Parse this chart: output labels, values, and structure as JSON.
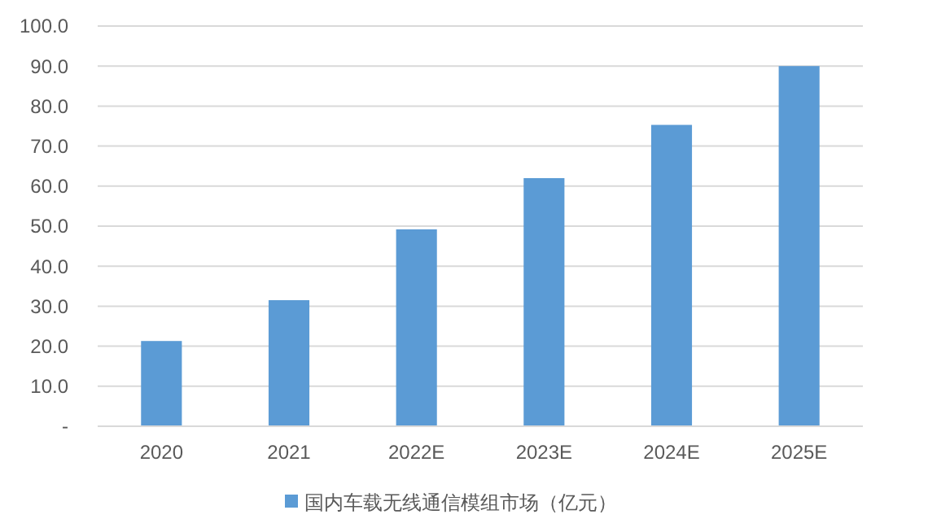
{
  "chart_data": {
    "type": "bar",
    "categories": [
      "2020",
      "2021",
      "2022E",
      "2023E",
      "2024E",
      "2025E"
    ],
    "series": [
      {
        "name": "国内车载无线通信模组市场（亿元）",
        "color": "#5b9bd5",
        "values": [
          21.3,
          31.5,
          49.2,
          62.0,
          75.3,
          90.0
        ]
      }
    ],
    "ylim": [
      0,
      100
    ],
    "yticks": [
      {
        "value": 0,
        "label": "-"
      },
      {
        "value": 10,
        "label": "10.0"
      },
      {
        "value": 20,
        "label": "20.0"
      },
      {
        "value": 30,
        "label": "30.0"
      },
      {
        "value": 40,
        "label": "40.0"
      },
      {
        "value": 50,
        "label": "50.0"
      },
      {
        "value": 60,
        "label": "60.0"
      },
      {
        "value": 70,
        "label": "70.0"
      },
      {
        "value": 80,
        "label": "80.0"
      },
      {
        "value": 90,
        "label": "90.0"
      },
      {
        "value": 100,
        "label": "100.0"
      }
    ],
    "grid": "y",
    "legend": "bottom"
  }
}
